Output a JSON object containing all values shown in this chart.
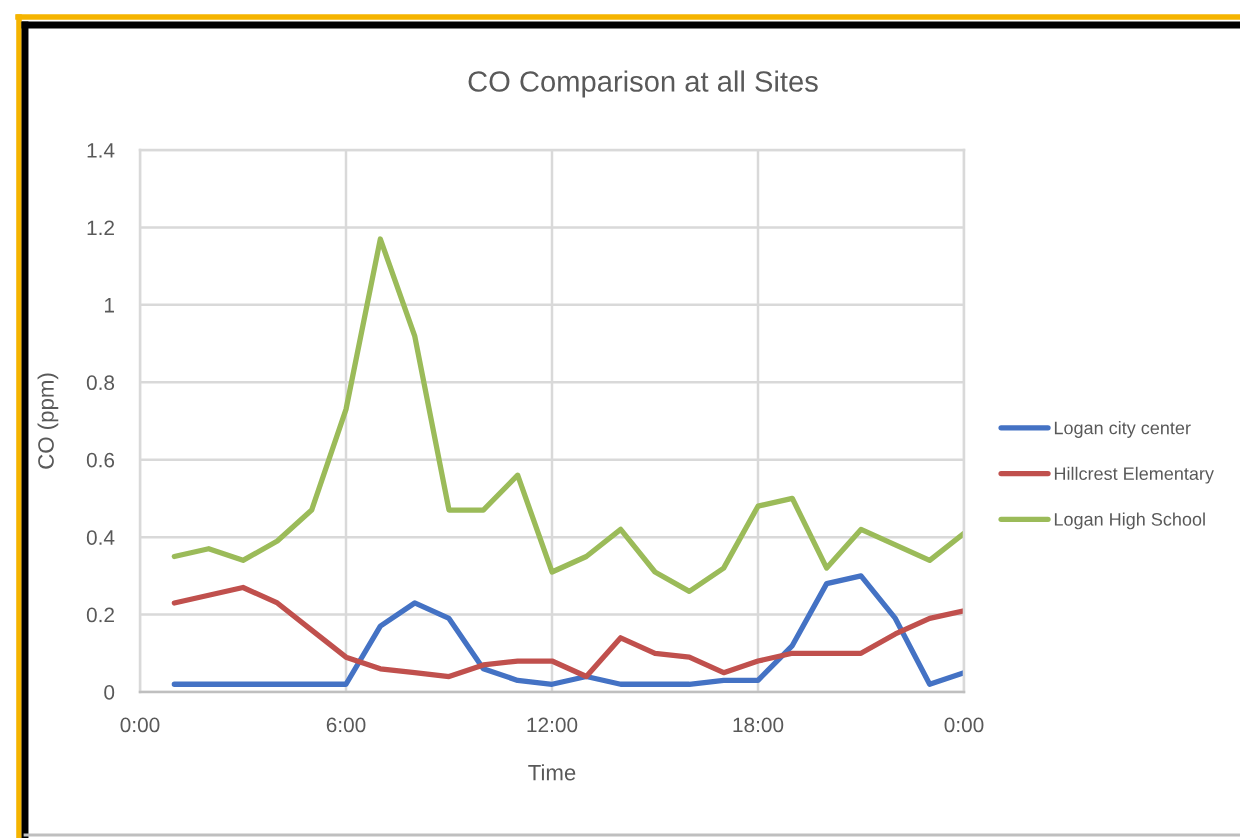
{
  "chart_data": {
    "type": "line",
    "title": "CO Comparison at all Sites",
    "xlabel": "Time",
    "ylabel": "CO (ppm)",
    "x": [
      1,
      2,
      3,
      4,
      5,
      6,
      7,
      8,
      9,
      10,
      11,
      12,
      13,
      14,
      15,
      16,
      17,
      18,
      19,
      20,
      21,
      22,
      23,
      24
    ],
    "series": [
      {
        "name": "Logan city center",
        "color": "#4472c4",
        "values": [
          0.02,
          0.02,
          0.02,
          0.02,
          0.02,
          0.02,
          0.17,
          0.23,
          0.19,
          0.06,
          0.03,
          0.02,
          0.04,
          0.02,
          0.02,
          0.02,
          0.03,
          0.03,
          0.12,
          0.28,
          0.3,
          0.19,
          0.02,
          0.05
        ]
      },
      {
        "name": "Hillcrest Elementary",
        "color": "#c0504d",
        "values": [
          0.23,
          0.25,
          0.27,
          0.23,
          0.16,
          0.09,
          0.06,
          0.05,
          0.04,
          0.07,
          0.08,
          0.08,
          0.04,
          0.14,
          0.1,
          0.09,
          0.05,
          0.08,
          0.1,
          0.1,
          0.1,
          0.15,
          0.19,
          0.21
        ]
      },
      {
        "name": "Logan High School",
        "color": "#9bbb59",
        "values": [
          0.35,
          0.37,
          0.34,
          0.39,
          0.47,
          0.73,
          1.17,
          0.92,
          0.47,
          0.47,
          0.56,
          0.31,
          0.35,
          0.42,
          0.31,
          0.26,
          0.32,
          0.48,
          0.5,
          0.32,
          0.42,
          0.38,
          0.34,
          0.41
        ]
      }
    ],
    "xlim": [
      0,
      24
    ],
    "xticks": [
      {
        "value": 0,
        "label": "0:00"
      },
      {
        "value": 6,
        "label": "6:00"
      },
      {
        "value": 12,
        "label": "12:00"
      },
      {
        "value": 18,
        "label": "18:00"
      },
      {
        "value": 24,
        "label": "0:00"
      }
    ],
    "ylim": [
      0,
      1.4
    ],
    "yticks": [
      0,
      0.2,
      0.4,
      0.6,
      0.8,
      1,
      1.2,
      1.4
    ],
    "grid": true,
    "legend": "right"
  }
}
